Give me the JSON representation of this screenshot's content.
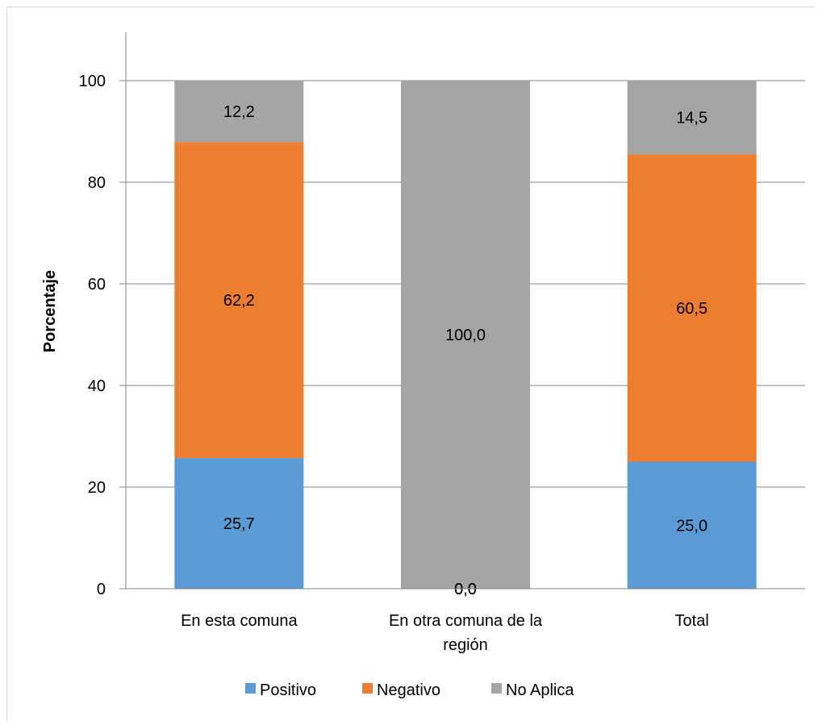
{
  "chart_data": {
    "type": "bar",
    "stacked": true,
    "title": "",
    "xlabel": "",
    "ylabel": "Porcentaje",
    "ylim": [
      0,
      100
    ],
    "yticks": [
      0,
      20,
      40,
      60,
      80,
      100
    ],
    "categories": [
      [
        "En esta comuna"
      ],
      [
        "En otra comuna de la",
        "región"
      ],
      [
        "Total"
      ]
    ],
    "series": [
      {
        "name": "Positivo",
        "color": "#5b9bd5",
        "values": [
          25.7,
          0.0,
          25.0
        ],
        "labels": [
          "25,7",
          "0,0",
          "25,0"
        ]
      },
      {
        "name": "Negativo",
        "color": "#ed7d31",
        "values": [
          62.2,
          0.0,
          60.5
        ],
        "labels": [
          "62,2",
          "0,0",
          "60,5"
        ]
      },
      {
        "name": "No Aplica",
        "color": "#a5a5a5",
        "values": [
          12.2,
          100.0,
          14.5
        ],
        "labels": [
          "12,2",
          "100,0",
          "14,5"
        ]
      }
    ],
    "grid": true,
    "legend": "bottom"
  }
}
